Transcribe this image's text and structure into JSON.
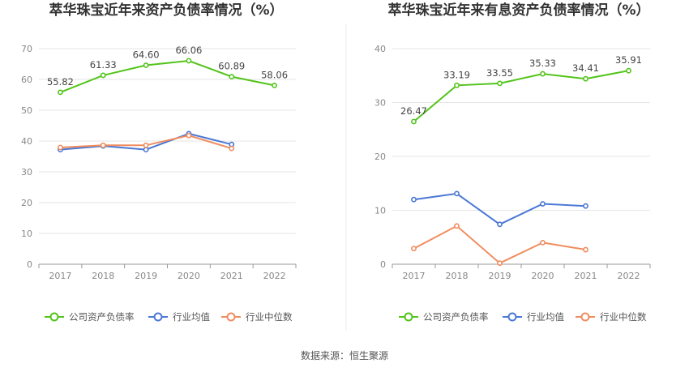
{
  "source_label": "数据来源：恒生聚源",
  "chart_data": [
    {
      "type": "line",
      "title": "萃华珠宝近年来资产负债率情况（%）",
      "categories": [
        "2017",
        "2018",
        "2019",
        "2020",
        "2021",
        "2022"
      ],
      "ylim": [
        0,
        70
      ],
      "yticks": [
        0,
        10,
        20,
        30,
        40,
        50,
        60,
        70
      ],
      "grid": true,
      "legend_position": "bottom-left",
      "series": [
        {
          "name": "公司资产负债率",
          "color": "#52c41a",
          "values": [
            55.82,
            61.33,
            64.6,
            66.06,
            60.89,
            58.06
          ],
          "labels": [
            "55.82",
            "61.33",
            "64.60",
            "66.06",
            "60.89",
            "58.06"
          ]
        },
        {
          "name": "行业均值",
          "color": "#4a78d6",
          "values": [
            37.2,
            38.4,
            37.2,
            42.4,
            38.9,
            null
          ],
          "labels": []
        },
        {
          "name": "行业中位数",
          "color": "#f08c5f",
          "values": [
            37.9,
            38.6,
            38.6,
            41.8,
            37.6,
            null
          ],
          "labels": []
        }
      ]
    },
    {
      "type": "line",
      "title": "萃华珠宝近年来有息资产负债率情况（%）",
      "categories": [
        "2017",
        "2018",
        "2019",
        "2020",
        "2021",
        "2022"
      ],
      "ylim": [
        0,
        40
      ],
      "yticks": [
        0,
        10,
        20,
        30,
        40
      ],
      "grid": true,
      "legend_position": "bottom-left",
      "series": [
        {
          "name": "公司资产负债率",
          "color": "#52c41a",
          "values": [
            26.47,
            33.19,
            33.55,
            35.33,
            34.41,
            35.91
          ],
          "labels": [
            "26.47",
            "33.19",
            "33.55",
            "35.33",
            "34.41",
            "35.91"
          ]
        },
        {
          "name": "行业均值",
          "color": "#4a78d6",
          "values": [
            12.0,
            13.1,
            7.4,
            11.2,
            10.8,
            null
          ],
          "labels": []
        },
        {
          "name": "行业中位数",
          "color": "#f08c5f",
          "values": [
            2.9,
            7.1,
            0.2,
            4.0,
            2.7,
            null
          ],
          "labels": []
        }
      ]
    }
  ]
}
